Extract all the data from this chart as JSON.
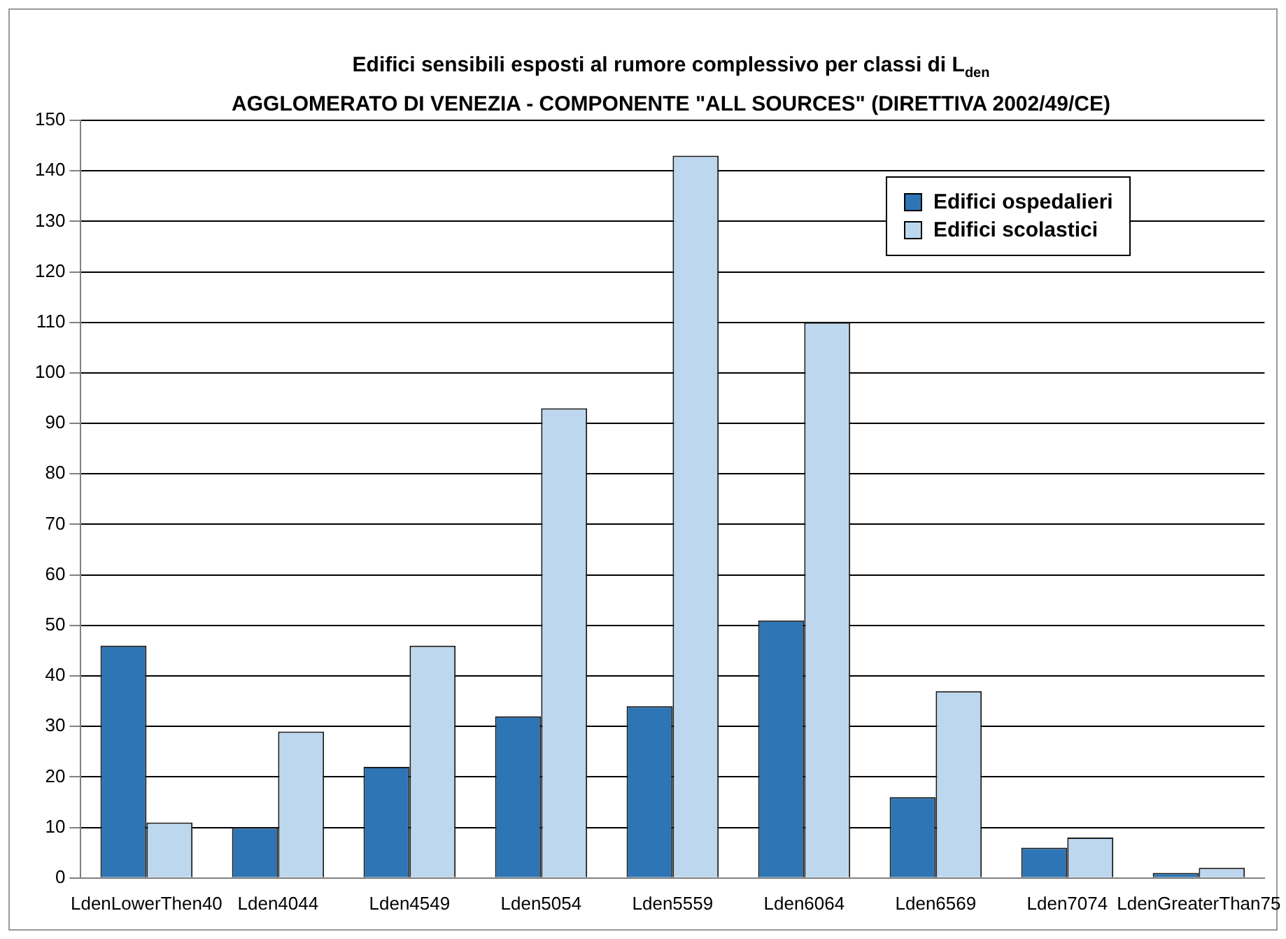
{
  "chart_data": {
    "type": "bar",
    "title": "Edifici sensibili esposti al rumore complessivo per classi di L$_{den}$",
    "subtitle": "AGGLOMERATO DI VENEZIA - COMPONENTE \"ALL SOURCES\" (DIRETTIVA 2002/49/CE)",
    "categories": [
      "LdenLowerThen40",
      "Lden4044",
      "Lden4549",
      "Lden5054",
      "Lden5559",
      "Lden6064",
      "Lden6569",
      "Lden7074",
      "LdenGreaterThan75"
    ],
    "series": [
      {
        "name": "Edifici ospedalieri",
        "color": "#2e75b6",
        "values": [
          46,
          10,
          22,
          32,
          34,
          51,
          16,
          6,
          1
        ]
      },
      {
        "name": "Edifici scolastici",
        "color": "#bdd7ee",
        "values": [
          11,
          29,
          46,
          93,
          143,
          110,
          37,
          8,
          2
        ]
      }
    ],
    "ylim": [
      0,
      150
    ],
    "yticks": [
      0,
      10,
      20,
      30,
      40,
      50,
      60,
      70,
      80,
      90,
      100,
      110,
      120,
      130,
      140,
      150
    ],
    "grid": "y",
    "legend": "top right"
  }
}
